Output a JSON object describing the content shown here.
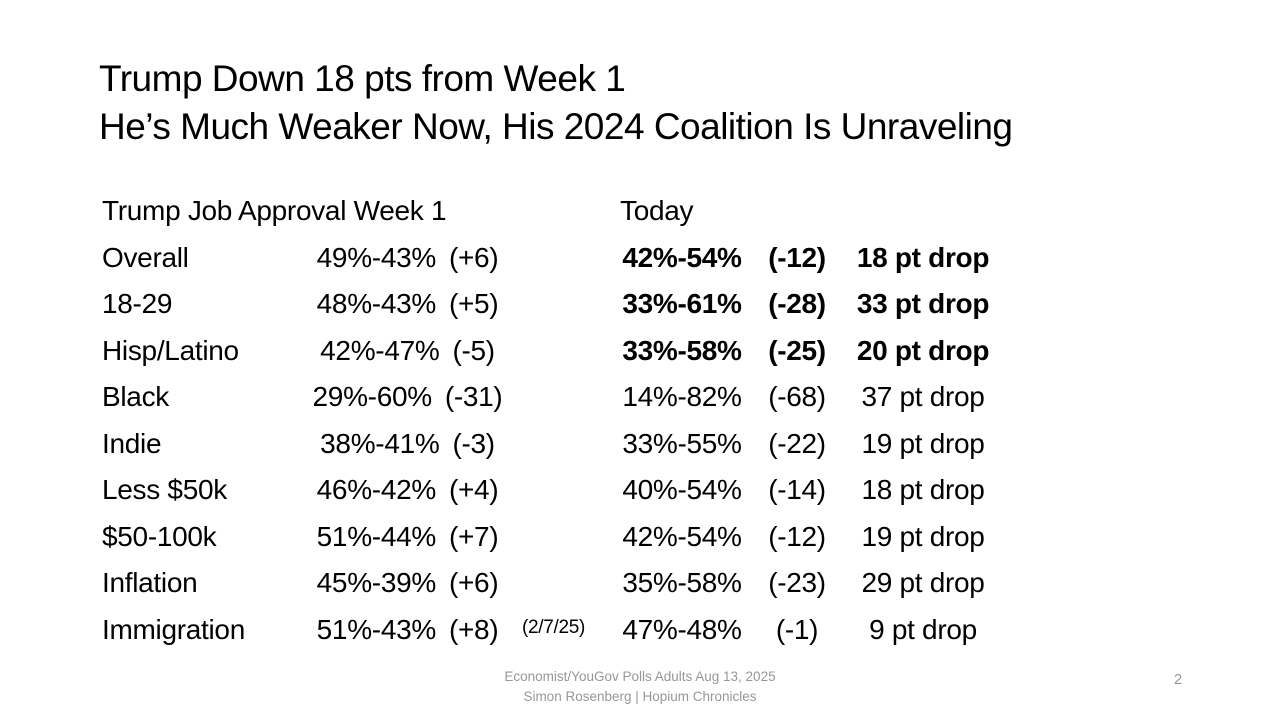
{
  "slide": {
    "title_line1": "Trump Down 18 pts from Week 1",
    "title_line2": "He’s Much Weaker Now, His 2024 Coalition Is Unraveling",
    "page_number": "2"
  },
  "table": {
    "header_week1": "Trump Job Approval Week 1",
    "header_today": "Today",
    "rows": [
      {
        "label": "Overall",
        "week1_pct": "49%-43%",
        "week1_margin": "(+6)",
        "week1_note": "",
        "today_pct": "42%-54%",
        "today_margin": "(-12)",
        "drop": "18 pt drop",
        "bold": true
      },
      {
        "label": "18-29",
        "week1_pct": "48%-43%",
        "week1_margin": "(+5)",
        "week1_note": "",
        "today_pct": "33%-61%",
        "today_margin": "(-28)",
        "drop": "33 pt drop",
        "bold": true
      },
      {
        "label": "Hisp/Latino",
        "week1_pct": "42%-47%",
        "week1_margin": "(-5)",
        "week1_note": "",
        "today_pct": "33%-58%",
        "today_margin": "(-25)",
        "drop": "20 pt drop",
        "bold": true
      },
      {
        "label": "Black",
        "week1_pct": "29%-60%",
        "week1_margin": "(-31)",
        "week1_note": "",
        "today_pct": "14%-82%",
        "today_margin": "(-68)",
        "drop": "37 pt drop",
        "bold": false
      },
      {
        "label": "Indie",
        "week1_pct": "38%-41%",
        "week1_margin": "(-3)",
        "week1_note": "",
        "today_pct": "33%-55%",
        "today_margin": "(-22)",
        "drop": "19 pt drop",
        "bold": false
      },
      {
        "label": "Less $50k",
        "week1_pct": "46%-42%",
        "week1_margin": "(+4)",
        "week1_note": "",
        "today_pct": "40%-54%",
        "today_margin": "(-14)",
        "drop": "18 pt drop",
        "bold": false
      },
      {
        "label": "$50-100k",
        "week1_pct": "51%-44%",
        "week1_margin": "(+7)",
        "week1_note": "",
        "today_pct": "42%-54%",
        "today_margin": "(-12)",
        "drop": "19 pt drop",
        "bold": false
      },
      {
        "label": "Inflation",
        "week1_pct": "45%-39%",
        "week1_margin": "(+6)",
        "week1_note": "",
        "today_pct": "35%-58%",
        "today_margin": "(-23)",
        "drop": "29 pt drop",
        "bold": false
      },
      {
        "label": "Immigration",
        "week1_pct": "51%-43%",
        "week1_margin": "(+8)",
        "week1_note": "(2/7/25)",
        "today_pct": "47%-48%",
        "today_margin": "(-1)",
        "drop": "9 pt drop",
        "bold": false
      }
    ]
  },
  "footer": {
    "line1": "Economist/YouGov Polls Adults Aug 13, 2025",
    "line2": "Simon Rosenberg | Hopium Chronicles"
  },
  "colors": {
    "text": "#000000",
    "muted": "#979797",
    "background": "#FFFFFF"
  }
}
